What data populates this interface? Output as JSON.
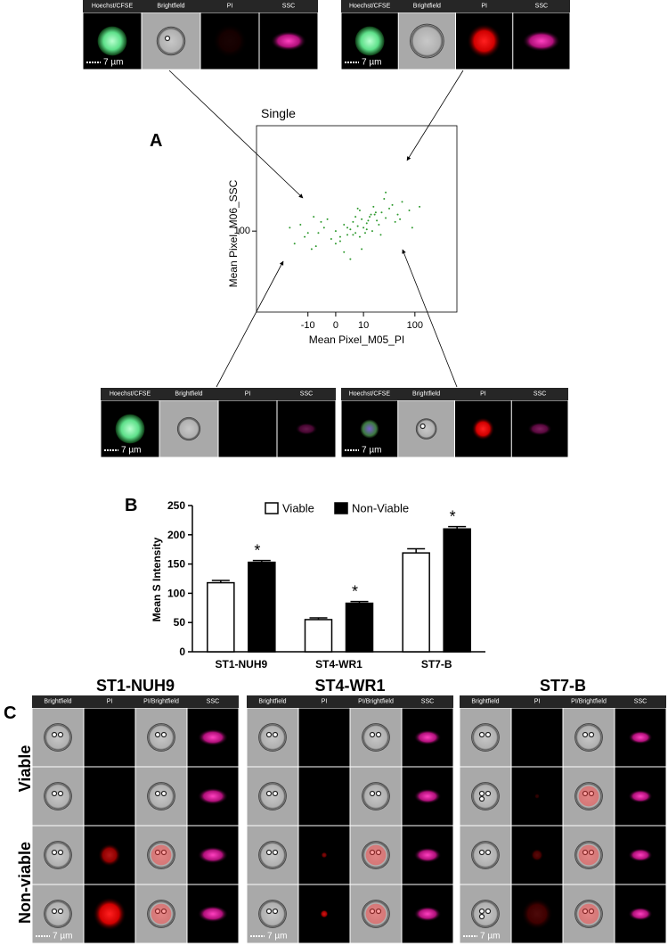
{
  "panel_labels": [
    "A",
    "B",
    "C"
  ],
  "chart_data": [
    {
      "type": "scatter",
      "title": "Single",
      "xlabel": "Mean Pixel_M05_PI",
      "ylabel": "Mean Pixel_M06_SSC",
      "x": [
        -20,
        -12,
        -8,
        -5,
        -3,
        -1,
        0,
        1,
        2,
        3,
        4,
        5,
        6,
        7,
        8,
        9,
        10,
        12,
        14,
        16,
        18,
        20,
        25,
        30,
        35,
        40,
        50,
        60,
        80,
        120,
        -15,
        -6,
        -2,
        2,
        5,
        8,
        11,
        15,
        22,
        28,
        -10,
        -4,
        0,
        3,
        6,
        9,
        13,
        17,
        24,
        45,
        -25,
        -7,
        1,
        4,
        7,
        12,
        19,
        30,
        55,
        90
      ],
      "y": [
        70,
        85,
        60,
        95,
        110,
        80,
        100,
        75,
        120,
        90,
        105,
        130,
        95,
        115,
        85,
        140,
        110,
        125,
        150,
        100,
        160,
        135,
        170,
        145,
        190,
        210,
        160,
        230,
        180,
        200,
        120,
        65,
        140,
        55,
        90,
        180,
        95,
        160,
        120,
        250,
        95,
        130,
        70,
        110,
        150,
        60,
        135,
        200,
        90,
        130,
        110,
        150,
        85,
        45,
        190,
        105,
        170,
        300,
        140,
        110
      ],
      "color": "#2f9a2f",
      "xscale": "symlog",
      "yscale": "log",
      "xlim": [
        -100,
        500
      ],
      "ylim": [
        10,
        2000
      ],
      "xticks": [
        -10,
        0,
        10,
        100
      ],
      "yticks": [
        100
      ]
    },
    {
      "type": "bar",
      "ylabel": "Mean S Intensity",
      "categories": [
        "ST1-NUH9",
        "ST4-WR1",
        "ST7-B"
      ],
      "series": [
        {
          "name": "Viable",
          "color": "#ffffff",
          "values": [
            118,
            55,
            169
          ],
          "errors": [
            4,
            3,
            7
          ]
        },
        {
          "name": "Non-Viable",
          "color": "#000000",
          "values": [
            153,
            83,
            210
          ],
          "errors": [
            3,
            3,
            4
          ]
        }
      ],
      "significance": [
        "*",
        "*",
        "*"
      ],
      "ylim": [
        0,
        250
      ],
      "yticks": [
        0,
        50,
        100,
        150,
        200,
        250
      ]
    }
  ],
  "panel_a_images": [
    {
      "channels": [
        "Hoechst/CFSE",
        "Brightfield",
        "PI",
        "SSC"
      ],
      "scale": "7 µm"
    },
    {
      "channels": [
        "Hoechst/CFSE",
        "Brightfield",
        "PI",
        "SSC"
      ],
      "scale": "7 µm"
    },
    {
      "channels": [
        "Hoechst/CFSE",
        "Brightfield",
        "PI",
        "SSC"
      ],
      "scale": "7 µm"
    },
    {
      "channels": [
        "Hoechst/CFSE",
        "Brightfield",
        "PI",
        "SSC"
      ],
      "scale": "7 µm"
    }
  ],
  "panel_c": {
    "row_labels": [
      "Viable",
      "Non-viable"
    ],
    "groups": [
      {
        "title": "ST1-NUH9",
        "channels": [
          "Brightfield",
          "PI",
          "PI/Brightfield",
          "SSC"
        ],
        "scale": "7 µm"
      },
      {
        "title": "ST4-WR1",
        "channels": [
          "Brightfield",
          "PI",
          "PI/Brightfield",
          "SSC"
        ],
        "scale": "7 µm"
      },
      {
        "title": "ST7-B",
        "channels": [
          "Brightfield",
          "PI",
          "PI/Brightfield",
          "SSC"
        ],
        "scale": "7 µm"
      }
    ]
  }
}
